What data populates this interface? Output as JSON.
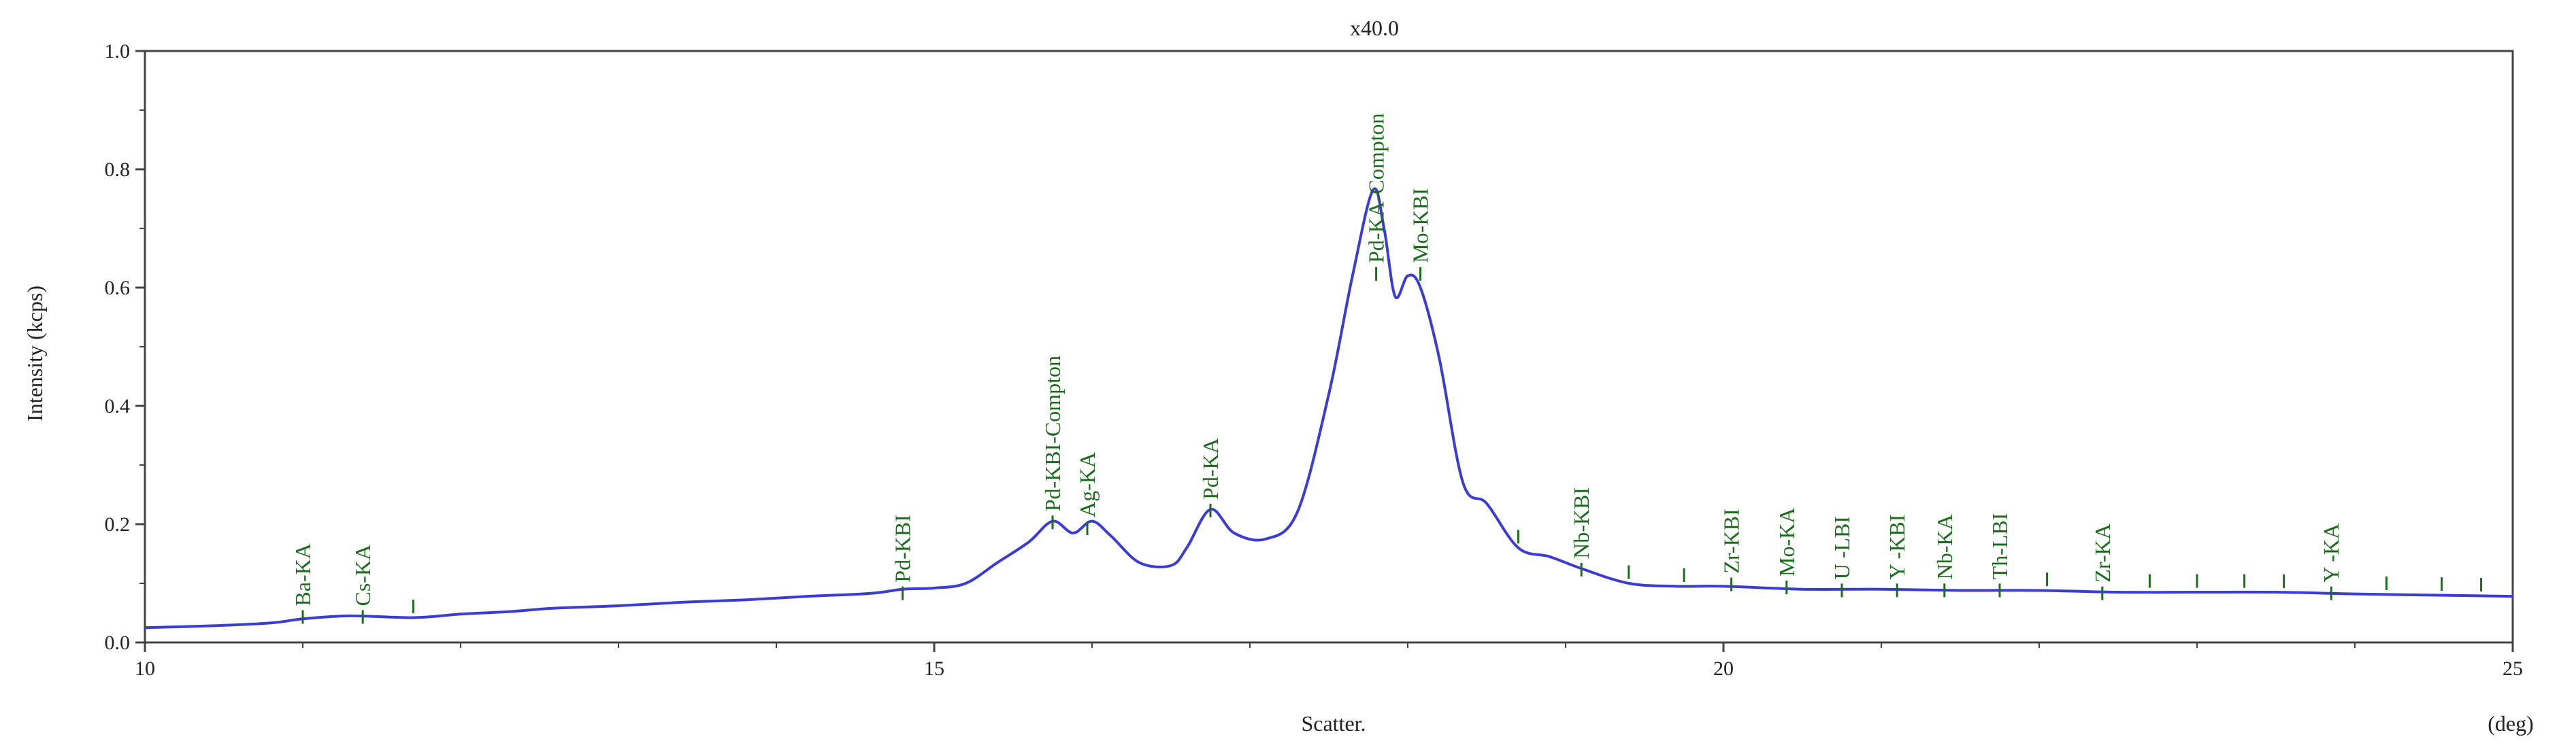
{
  "chart_data": {
    "type": "line",
    "title": "x40.0",
    "xlabel": "Scatter.",
    "xunit": "(deg)",
    "ylabel": "Intensity (kcps)",
    "xlim": [
      10,
      25
    ],
    "ylim": [
      0,
      1.0
    ],
    "x_ticks": [
      "10",
      "15",
      "20",
      "25"
    ],
    "y_ticks": [
      "0.0",
      "0.2",
      "0.4",
      "0.6",
      "0.8",
      "1.0"
    ],
    "grid": false,
    "series": [
      {
        "color": "#3b3bd6",
        "points": [
          [
            10.0,
            0.025
          ],
          [
            10.4,
            0.028
          ],
          [
            10.8,
            0.033
          ],
          [
            11.0,
            0.04
          ],
          [
            11.3,
            0.045
          ],
          [
            11.7,
            0.042
          ],
          [
            12.0,
            0.048
          ],
          [
            12.3,
            0.052
          ],
          [
            12.6,
            0.058
          ],
          [
            13.0,
            0.062
          ],
          [
            13.4,
            0.068
          ],
          [
            13.8,
            0.072
          ],
          [
            14.2,
            0.078
          ],
          [
            14.6,
            0.083
          ],
          [
            14.8,
            0.09
          ],
          [
            15.0,
            0.092
          ],
          [
            15.2,
            0.1
          ],
          [
            15.4,
            0.135
          ],
          [
            15.6,
            0.17
          ],
          [
            15.75,
            0.205
          ],
          [
            15.88,
            0.185
          ],
          [
            16.0,
            0.205
          ],
          [
            16.12,
            0.18
          ],
          [
            16.3,
            0.135
          ],
          [
            16.5,
            0.13
          ],
          [
            16.6,
            0.16
          ],
          [
            16.75,
            0.225
          ],
          [
            16.9,
            0.185
          ],
          [
            17.1,
            0.175
          ],
          [
            17.3,
            0.22
          ],
          [
            17.5,
            0.42
          ],
          [
            17.65,
            0.62
          ],
          [
            17.78,
            0.765
          ],
          [
            17.85,
            0.7
          ],
          [
            17.92,
            0.585
          ],
          [
            18.0,
            0.62
          ],
          [
            18.08,
            0.6
          ],
          [
            18.2,
            0.48
          ],
          [
            18.35,
            0.27
          ],
          [
            18.5,
            0.235
          ],
          [
            18.7,
            0.16
          ],
          [
            18.9,
            0.145
          ],
          [
            19.1,
            0.125
          ],
          [
            19.4,
            0.1
          ],
          [
            19.7,
            0.095
          ],
          [
            20.0,
            0.095
          ],
          [
            20.5,
            0.09
          ],
          [
            21.0,
            0.09
          ],
          [
            21.5,
            0.088
          ],
          [
            22.0,
            0.088
          ],
          [
            22.5,
            0.085
          ],
          [
            23.0,
            0.085
          ],
          [
            23.5,
            0.085
          ],
          [
            24.0,
            0.082
          ],
          [
            24.5,
            0.08
          ],
          [
            25.0,
            0.078
          ]
        ]
      }
    ],
    "peak_labels": [
      {
        "text": "Ba-KA",
        "x": 11.0,
        "y": 0.05
      },
      {
        "text": "Cs-KA",
        "x": 11.38,
        "y": 0.05
      },
      {
        "text": "Pd-KBI",
        "x": 14.8,
        "y": 0.09
      },
      {
        "text": "Pd-KBI-Compton",
        "x": 15.75,
        "y": 0.21
      },
      {
        "text": "Ag-KA",
        "x": 15.97,
        "y": 0.2
      },
      {
        "text": "Pd-KA",
        "x": 16.75,
        "y": 0.23
      },
      {
        "text": "Pd-KA-Compton",
        "x": 17.8,
        "y": 0.63
      },
      {
        "text": "Mo-KBI",
        "x": 18.08,
        "y": 0.63
      },
      {
        "text": "Nb-KBI",
        "x": 19.1,
        "y": 0.13
      },
      {
        "text": "Zr-KBI",
        "x": 20.05,
        "y": 0.105
      },
      {
        "text": "Mo-KA",
        "x": 20.4,
        "y": 0.1
      },
      {
        "text": "U -LBI",
        "x": 20.75,
        "y": 0.095
      },
      {
        "text": "Y -KBI",
        "x": 21.1,
        "y": 0.095
      },
      {
        "text": "Nb-KA",
        "x": 21.4,
        "y": 0.095
      },
      {
        "text": "Th-LBI",
        "x": 21.75,
        "y": 0.095
      },
      {
        "text": "Zr-KA",
        "x": 22.4,
        "y": 0.09
      },
      {
        "text": "Y -KA",
        "x": 23.85,
        "y": 0.09
      }
    ],
    "minor_markers_x": [
      11.7,
      18.7,
      19.4,
      19.75,
      22.05,
      22.7,
      23.0,
      23.3,
      23.55,
      24.2,
      24.55,
      24.8
    ]
  }
}
